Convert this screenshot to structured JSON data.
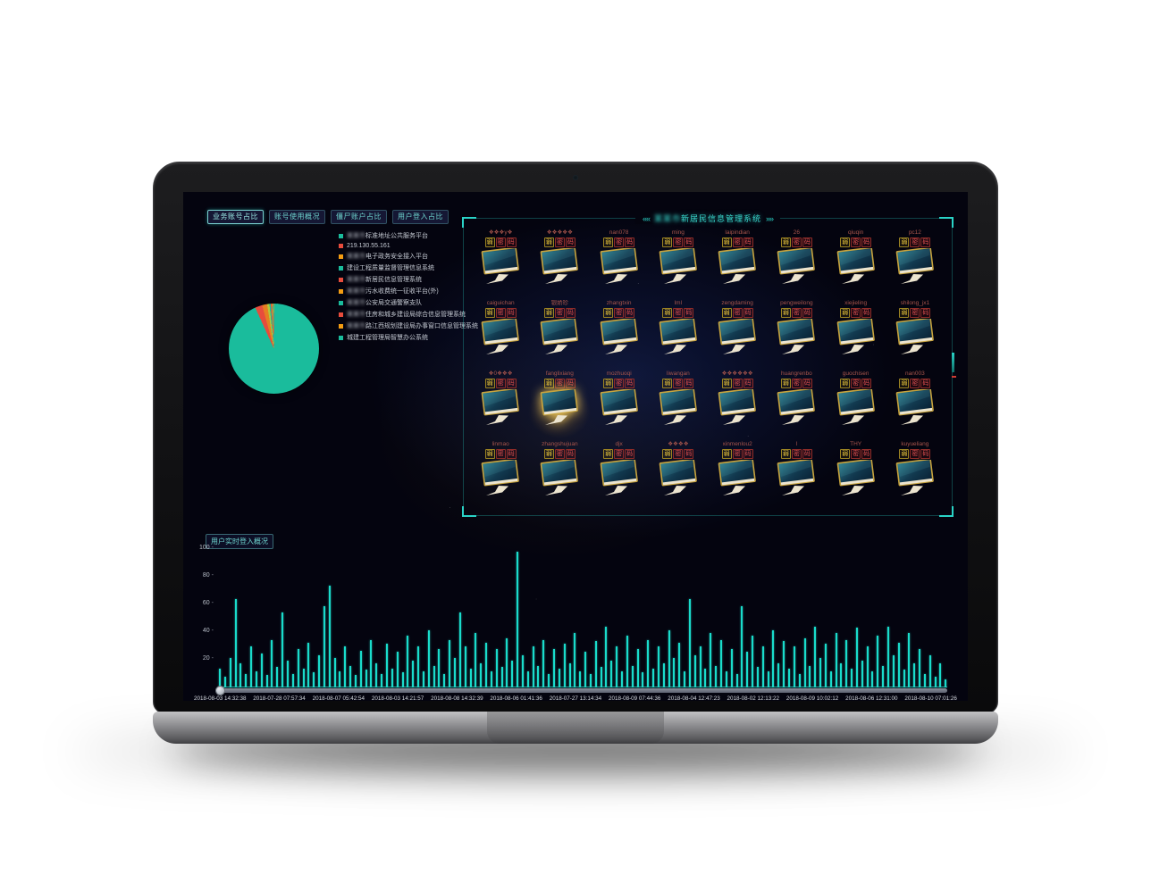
{
  "tabs": [
    {
      "label": "业务账号占比",
      "active": true
    },
    {
      "label": "账号使用概况",
      "active": false
    },
    {
      "label": "僵尸账户占比",
      "active": false
    },
    {
      "label": "用户登入占比",
      "active": false
    }
  ],
  "legend": {
    "items": [
      {
        "color": "#1abc9c",
        "prefix": "某某市",
        "label": "标准地址公共服务平台"
      },
      {
        "color": "#e74c3c",
        "prefix": "",
        "label": "219.130.55.161"
      },
      {
        "color": "#f39c12",
        "prefix": "某某市",
        "label": "电子政务安全接入平台"
      },
      {
        "color": "#1abc9c",
        "prefix": "",
        "label": "建设工程质量监督管理信息系统"
      },
      {
        "color": "#e74c3c",
        "prefix": "某某市",
        "label": "新居民信息管理系统"
      },
      {
        "color": "#f39c12",
        "prefix": "某某市",
        "label": "污水收费统一征收平台(外)"
      },
      {
        "color": "#1abc9c",
        "prefix": "某某市",
        "label": "公安局交通警察支队"
      },
      {
        "color": "#e74c3c",
        "prefix": "某某市",
        "label": "住房和城乡建设局综合信息管理系统"
      },
      {
        "color": "#f39c12",
        "prefix": "某某市",
        "label": "路江西规划建设局办事窗口信息管理系统"
      },
      {
        "color": "#1abc9c",
        "prefix": "",
        "label": "城建工程管理局智慧办公系统"
      }
    ]
  },
  "monitor_wall": {
    "prev_icon": "««",
    "next_icon": "»»",
    "title_prefix": "某某市",
    "title_text": "新居民信息管理系统",
    "badge": [
      {
        "char": "弱",
        "level": "warn"
      },
      {
        "char": "密",
        "level": "danger"
      },
      {
        "char": "码",
        "level": "danger"
      }
    ],
    "highlight_index": 17,
    "users": [
      "❖❖❖y❖",
      "❖❖❖❖❖",
      "nan078",
      "ming",
      "laipindian",
      "26",
      "qiuqin",
      "pc12",
      "caiguichan",
      "银娇珍",
      "zhangtxin",
      "lml",
      "zengdaming",
      "pengweilong",
      "xiejieling",
      "shilong_jx1",
      "❖0❖❖❖",
      "fanglixiang",
      "mozhuoqi",
      "liwangan",
      "❖❖❖❖❖❖",
      "huangrenbo",
      "guochisen",
      "nan003",
      "linmao",
      "zhangshujuan",
      "djx",
      "❖❖❖❖",
      "xinmenlou2",
      "l",
      "THY",
      "kuyueliang"
    ]
  },
  "login_chart": {
    "title": "用户实时登入概况",
    "bar_color": "#19dccb"
  },
  "chart_data": [
    {
      "type": "pie",
      "title": "业务账号占比",
      "labels": [
        "某某市标准地址公共服务平台",
        "219.130.55.161",
        "某某市电子政务安全接入平台",
        "建设工程质量监督管理信息系统",
        "某某市新居民信息管理系统",
        "某某市污水收费统一征收平台(外)",
        "某某市公安局交通警察支队",
        "某某市住房和城乡建设局综合信息管理系统",
        "某某市路江西规划建设局办事窗口信息管理系统",
        "城建工程管理局智慧办公系统"
      ],
      "values": [
        93.2,
        2.6,
        1.8,
        0.8,
        0.5,
        0.35,
        0.3,
        0.2,
        0.15,
        0.1
      ],
      "colors": [
        "#1abc9c",
        "#e74c3c",
        "#e67e22",
        "#b3c73a",
        "#1abc9c",
        "#e74c3c",
        "#f39c12",
        "#1abc9c",
        "#e74c3c",
        "#f39c12"
      ],
      "legend_position": "top-left"
    },
    {
      "type": "bar",
      "title": "用户实时登入概况",
      "xlabel": "",
      "ylabel": "",
      "ylim": [
        0,
        100
      ],
      "y_ticks": [
        100,
        80,
        60,
        40,
        20
      ],
      "x_labels": [
        "2018-08-03 14:32:38",
        "2018-07-28 07:57:34",
        "2018-08-07 05:42:54",
        "2018-08-03 14:21:57",
        "2018-08-08 14:32:39",
        "2018-08-06 01:41:36",
        "2018-07-27 13:14:34",
        "2018-08-09 07:44:36",
        "2018-08-04 12:47:23",
        "2018-08-02 12:13:22",
        "2018-08-09 10:02:12",
        "2018-08-06 12:31:00",
        "2018-08-10 07:01:26"
      ],
      "values": [
        14,
        8,
        22,
        65,
        18,
        10,
        30,
        12,
        25,
        9,
        35,
        15,
        55,
        20,
        10,
        28,
        14,
        33,
        11,
        24,
        60,
        75,
        22,
        12,
        30,
        16,
        9,
        27,
        13,
        35,
        18,
        10,
        32,
        14,
        26,
        11,
        38,
        20,
        30,
        12,
        42,
        16,
        28,
        10,
        35,
        22,
        55,
        30,
        14,
        40,
        18,
        33,
        12,
        28,
        15,
        36,
        20,
        100,
        24,
        12,
        30,
        16,
        35,
        10,
        28,
        14,
        32,
        18,
        40,
        12,
        26,
        10,
        34,
        15,
        45,
        20,
        30,
        12,
        38,
        16,
        28,
        11,
        35,
        14,
        30,
        18,
        42,
        22,
        33,
        12,
        65,
        24,
        30,
        14,
        40,
        16,
        35,
        12,
        28,
        10,
        60,
        26,
        38,
        15,
        30,
        12,
        42,
        18,
        34,
        14,
        30,
        10,
        36,
        16,
        45,
        22,
        32,
        12,
        40,
        18,
        35,
        14,
        44,
        20,
        30,
        12,
        38,
        16,
        45,
        24,
        33,
        13,
        40,
        18,
        28,
        10,
        24,
        8,
        18,
        6
      ]
    }
  ]
}
